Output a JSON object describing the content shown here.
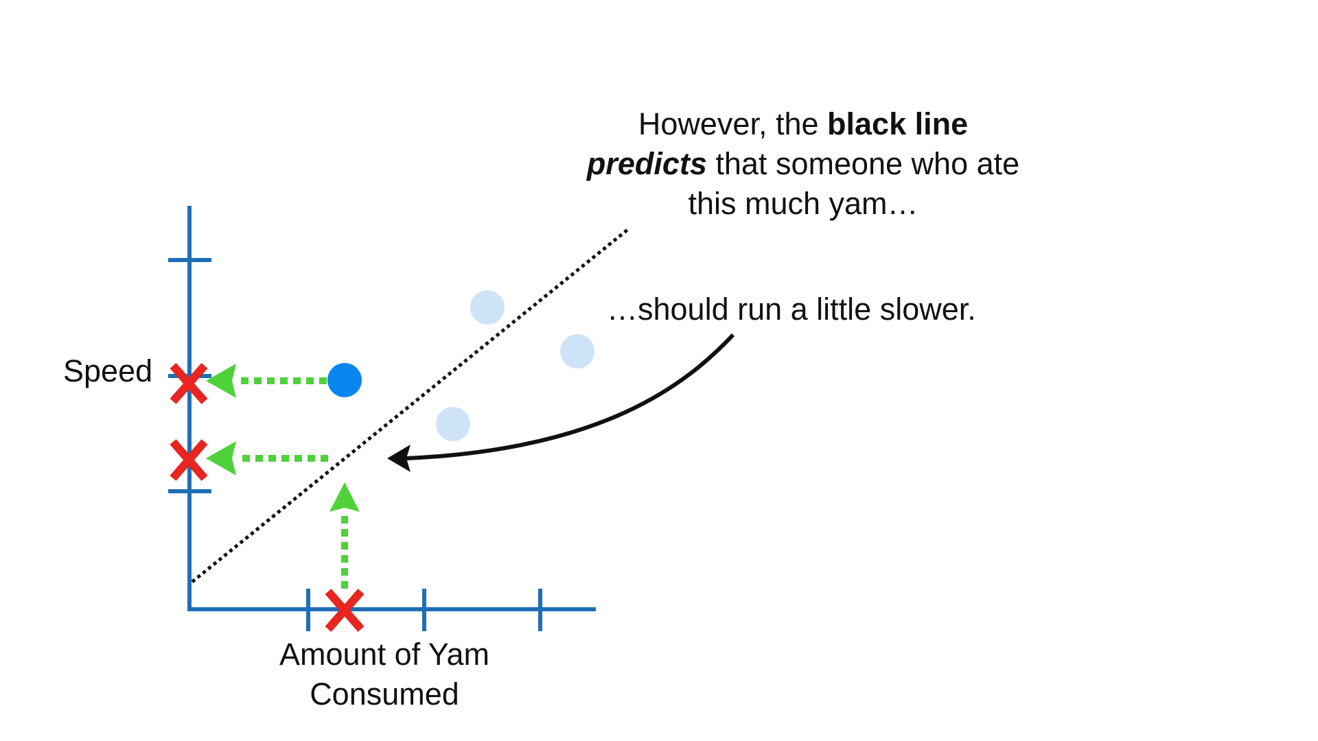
{
  "caption_top": {
    "line1_normal": "However, the ",
    "line1_bold": "black line",
    "line2_bolditalic": "predicts",
    "line2_normal": " that someone who ate",
    "line3": "this much yam…"
  },
  "caption_side": "…should run a little slower.",
  "axes": {
    "y_label": "Speed",
    "x_label_line1": "Amount of Yam",
    "x_label_line2": "Consumed"
  },
  "colors": {
    "axis": "#1f6fb5",
    "marker_x": "#e8251f",
    "arrow_green": "#4fd13a",
    "point_active": "#0b86f0",
    "point_faded": "#cfe3f8",
    "line": "#111111"
  },
  "icons": {
    "x_marker": "x-mark-icon",
    "curved_arrow": "curved-arrow-icon"
  }
}
